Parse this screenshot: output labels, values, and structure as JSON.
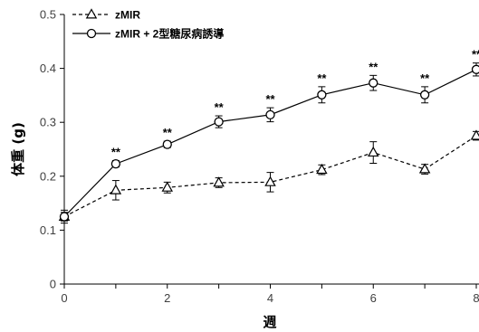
{
  "chart_data": {
    "type": "line",
    "title": "",
    "xlabel": "週",
    "ylabel": "体重 (g)",
    "xlim": [
      0,
      8
    ],
    "ylim": [
      0,
      0.5
    ],
    "x_ticks": [
      0,
      2,
      4,
      6,
      8
    ],
    "y_ticks": [
      0,
      0.1,
      0.2,
      0.3,
      0.4,
      0.5
    ],
    "x_tick_labels": [
      "0",
      "2",
      "4",
      "6",
      "8"
    ],
    "y_tick_labels": [
      "0",
      "0.1",
      "0.2",
      "0.3",
      "0.4",
      "0.5"
    ],
    "grid": false,
    "legend_position": "top-left",
    "x": [
      0,
      1,
      2,
      3,
      4,
      5,
      6,
      7,
      8
    ],
    "series": [
      {
        "name": "zMIR",
        "marker": "triangle",
        "line_style": "dashed",
        "values": [
          0.125,
          0.174,
          0.179,
          0.188,
          0.189,
          0.212,
          0.244,
          0.213,
          0.275
        ],
        "errors": [
          0.012,
          0.018,
          0.01,
          0.009,
          0.018,
          0.009,
          0.02,
          0.009,
          0.008
        ]
      },
      {
        "name": "zMIR + 2型糖尿病誘導",
        "marker": "circle",
        "line_style": "solid",
        "values": [
          0.125,
          0.223,
          0.259,
          0.301,
          0.314,
          0.351,
          0.373,
          0.351,
          0.398
        ],
        "errors": [
          0.008,
          0.006,
          0.006,
          0.011,
          0.013,
          0.015,
          0.014,
          0.015,
          0.012
        ]
      }
    ],
    "annotations": [
      {
        "x": 1,
        "text": "**"
      },
      {
        "x": 2,
        "text": "**"
      },
      {
        "x": 3,
        "text": "**"
      },
      {
        "x": 4,
        "text": "**"
      },
      {
        "x": 5,
        "text": "**"
      },
      {
        "x": 6,
        "text": "**"
      },
      {
        "x": 7,
        "text": "**"
      },
      {
        "x": 8,
        "text": "**"
      }
    ]
  }
}
